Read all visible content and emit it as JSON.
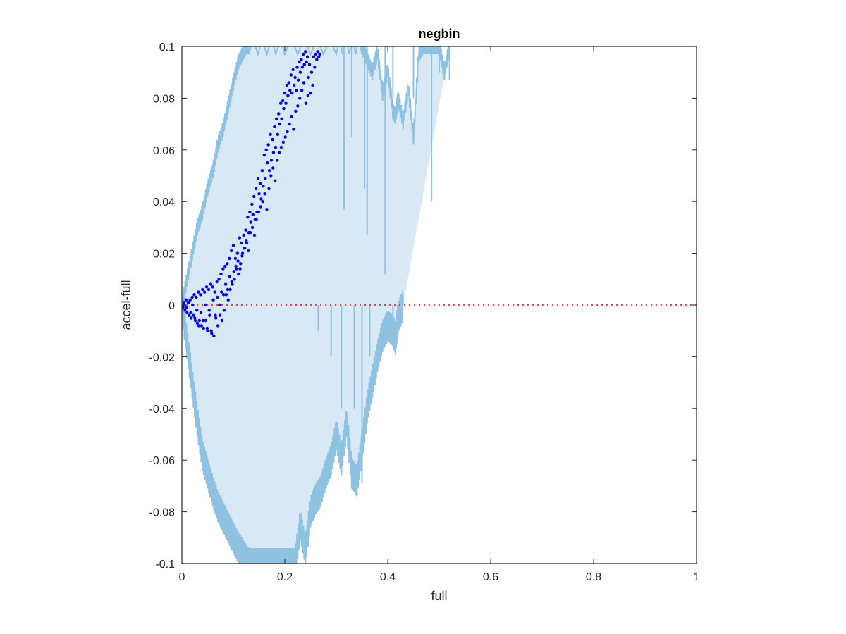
{
  "chart_data": {
    "type": "scatter",
    "title": "negbin",
    "xlabel": "full",
    "ylabel": "accel-full",
    "xlim": [
      0,
      1
    ],
    "ylim": [
      -0.1,
      0.1
    ],
    "xticks": [
      0,
      0.2,
      0.4,
      0.6,
      0.8,
      1
    ],
    "xtick_labels": [
      "0",
      "0.2",
      "0.4",
      "0.6",
      "0.8",
      "1"
    ],
    "yticks": [
      -0.1,
      -0.08,
      -0.06,
      -0.04,
      -0.02,
      0,
      0.02,
      0.04,
      0.06,
      0.08,
      0.1
    ],
    "ytick_labels": [
      "-0.1",
      "-0.08",
      "-0.06",
      "-0.04",
      "-0.02",
      "0",
      "0.02",
      "0.04",
      "0.06",
      "0.08",
      "0.1"
    ],
    "grid": false,
    "reference_line": {
      "y": 0,
      "color": "#ff0000",
      "style": "dotted"
    },
    "band_color": "#8fc1e0",
    "band_fill_color": "#d9e8f5",
    "points_color": "#0000ee",
    "upper_envelope": {
      "x": [
        0,
        0.01,
        0.02,
        0.03,
        0.04,
        0.05,
        0.06,
        0.07,
        0.08,
        0.09,
        0.1,
        0.11,
        0.12,
        0.125,
        0.13,
        0.2,
        0.3,
        0.35,
        0.36,
        0.37,
        0.38,
        0.39,
        0.4,
        0.41,
        0.415,
        0.42,
        0.43,
        0.44,
        0.45,
        0.46,
        0.47,
        0.48,
        0.49,
        0.5,
        0.51,
        0.52
      ],
      "y": [
        0,
        0.01,
        0.02,
        0.03,
        0.036,
        0.045,
        0.052,
        0.062,
        0.068,
        0.077,
        0.086,
        0.094,
        0.098,
        0.1,
        0.1,
        0.1,
        0.1,
        0.1,
        0.095,
        0.09,
        0.098,
        0.082,
        0.091,
        0.075,
        0.073,
        0.08,
        0.071,
        0.084,
        0.065,
        0.097,
        0.1,
        0.1,
        0.1,
        0.1,
        0.09,
        0.1
      ]
    },
    "lower_envelope": {
      "x": [
        0,
        0.01,
        0.02,
        0.03,
        0.04,
        0.05,
        0.06,
        0.07,
        0.08,
        0.09,
        0.1,
        0.11,
        0.12,
        0.13,
        0.14,
        0.15,
        0.16,
        0.17,
        0.18,
        0.19,
        0.2,
        0.21,
        0.22,
        0.23,
        0.24,
        0.25,
        0.26,
        0.27,
        0.28,
        0.29,
        0.3,
        0.31,
        0.32,
        0.33,
        0.34,
        0.35,
        0.36,
        0.37,
        0.38,
        0.39,
        0.4,
        0.41,
        0.415,
        0.42,
        0.43
      ],
      "y": [
        0,
        -0.015,
        -0.03,
        -0.045,
        -0.058,
        -0.065,
        -0.072,
        -0.078,
        -0.082,
        -0.086,
        -0.09,
        -0.094,
        -0.097,
        -0.1,
        -0.1,
        -0.1,
        -0.1,
        -0.1,
        -0.1,
        -0.1,
        -0.1,
        -0.1,
        -0.1,
        -0.085,
        -0.095,
        -0.08,
        -0.075,
        -0.072,
        -0.065,
        -0.06,
        -0.05,
        -0.06,
        -0.045,
        -0.065,
        -0.068,
        -0.055,
        -0.04,
        -0.03,
        -0.02,
        -0.012,
        -0.008,
        -0.01,
        -0.013,
        -0.005,
        0
      ]
    },
    "upper_spikes": [
      {
        "x": 0.33,
        "y": 0.065
      },
      {
        "x": 0.315,
        "y": 0.037
      },
      {
        "x": 0.355,
        "y": 0.045
      },
      {
        "x": 0.36,
        "y": 0.027
      },
      {
        "x": 0.395,
        "y": 0.012
      },
      {
        "x": 0.41,
        "y": 0.08
      },
      {
        "x": 0.45,
        "y": 0.08
      },
      {
        "x": 0.485,
        "y": 0.04
      },
      {
        "x": 0.5,
        "y": 0.09
      },
      {
        "x": 0.52,
        "y": 0.087
      }
    ],
    "lower_spikes": [
      {
        "x": 0.265,
        "y": -0.01
      },
      {
        "x": 0.29,
        "y": -0.02
      },
      {
        "x": 0.31,
        "y": -0.04
      },
      {
        "x": 0.335,
        "y": -0.04
      },
      {
        "x": 0.35,
        "y": -0.069
      },
      {
        "x": 0.365,
        "y": -0.02
      },
      {
        "x": 0.41,
        "y": -0.013
      },
      {
        "x": 0.42,
        "y": -0.005
      }
    ],
    "series": [
      {
        "type": "scatter",
        "x": [
          0.002,
          0.004,
          0.006,
          0.008,
          0.01,
          0.012,
          0.014,
          0.016,
          0.018,
          0.02,
          0.022,
          0.024,
          0.026,
          0.028,
          0.03,
          0.032,
          0.034,
          0.036,
          0.038,
          0.04,
          0.042,
          0.044,
          0.046,
          0.048,
          0.05,
          0.052,
          0.054,
          0.056,
          0.058,
          0.06,
          0.062,
          0.064,
          0.066,
          0.068,
          0.07,
          0.072,
          0.074,
          0.076,
          0.078,
          0.08,
          0.082,
          0.084,
          0.086,
          0.088,
          0.09,
          0.092,
          0.094,
          0.096,
          0.098,
          0.1,
          0.102,
          0.104,
          0.106,
          0.108,
          0.11,
          0.112,
          0.114,
          0.116,
          0.118,
          0.12,
          0.122,
          0.124,
          0.126,
          0.128,
          0.13,
          0.132,
          0.134,
          0.136,
          0.138,
          0.14,
          0.142,
          0.144,
          0.146,
          0.148,
          0.15,
          0.152,
          0.154,
          0.156,
          0.158,
          0.16,
          0.162,
          0.164,
          0.166,
          0.168,
          0.17,
          0.172,
          0.174,
          0.176,
          0.178,
          0.18,
          0.182,
          0.184,
          0.186,
          0.188,
          0.19,
          0.192,
          0.194,
          0.196,
          0.198,
          0.2,
          0.202,
          0.204,
          0.206,
          0.208,
          0.21,
          0.212,
          0.214,
          0.216,
          0.218,
          0.22,
          0.222,
          0.224,
          0.226,
          0.228,
          0.23,
          0.232,
          0.234,
          0.236,
          0.238,
          0.24,
          0.242,
          0.244,
          0.246,
          0.248,
          0.25,
          0.252,
          0.254,
          0.256,
          0.258,
          0.26,
          0.262,
          0.264,
          0.266,
          0.268,
          0.005,
          0.009,
          0.013,
          0.017,
          0.021,
          0.025,
          0.029,
          0.033,
          0.037,
          0.041,
          0.045,
          0.049,
          0.053,
          0.057,
          0.061,
          0.065,
          0.069,
          0.073,
          0.077,
          0.081,
          0.085,
          0.089,
          0.093,
          0.097,
          0.101,
          0.105,
          0.109,
          0.113,
          0.117,
          0.121,
          0.125,
          0.129,
          0.133,
          0.137,
          0.141,
          0.145,
          0.149,
          0.153,
          0.157,
          0.161,
          0.165,
          0.169,
          0.173,
          0.177,
          0.181,
          0.185,
          0.189,
          0.193,
          0.197,
          0.201,
          0.205,
          0.209,
          0.213,
          0.217,
          0.221,
          0.225,
          0.229,
          0.233,
          0.237,
          0.241,
          0.245
        ],
        "y": [
          -0.001,
          0.001,
          -0.002,
          0.002,
          -0.003,
          0.001,
          -0.004,
          0.002,
          -0.005,
          0.003,
          -0.004,
          0.004,
          -0.006,
          0.003,
          -0.007,
          0.005,
          -0.006,
          0.004,
          -0.008,
          0.006,
          -0.009,
          0.005,
          -0.006,
          0.007,
          -0.01,
          0.006,
          -0.004,
          0.008,
          -0.011,
          0.007,
          -0.012,
          0.005,
          -0.005,
          0.009,
          -0.008,
          0.01,
          -0.004,
          0.012,
          -0.006,
          0.014,
          -0.002,
          0.015,
          0.004,
          0.016,
          0.002,
          0.018,
          0.006,
          0.021,
          0.008,
          0.023,
          0.01,
          0.018,
          0.014,
          0.02,
          0.012,
          0.026,
          0.016,
          0.024,
          0.02,
          0.027,
          0.022,
          0.029,
          0.024,
          0.034,
          0.028,
          0.036,
          0.032,
          0.039,
          0.035,
          0.042,
          0.033,
          0.045,
          0.036,
          0.049,
          0.043,
          0.047,
          0.041,
          0.052,
          0.046,
          0.058,
          0.049,
          0.06,
          0.055,
          0.062,
          0.052,
          0.066,
          0.056,
          0.064,
          0.059,
          0.069,
          0.061,
          0.072,
          0.066,
          0.074,
          0.07,
          0.078,
          0.072,
          0.079,
          0.076,
          0.082,
          0.078,
          0.085,
          0.081,
          0.086,
          0.083,
          0.089,
          0.082,
          0.091,
          0.085,
          0.088,
          0.083,
          0.092,
          0.087,
          0.094,
          0.09,
          0.095,
          0.092,
          0.097,
          0.093,
          0.098,
          0.094,
          0.096,
          0.088,
          0.093,
          0.082,
          0.09,
          0.085,
          0.096,
          0.092,
          0.097,
          0.095,
          0.098,
          0.096,
          0.097,
          0.0,
          -0.001,
          0.001,
          -0.003,
          0.0,
          -0.005,
          -0.002,
          -0.008,
          -0.003,
          -0.006,
          0.0,
          -0.009,
          -0.002,
          -0.01,
          0.002,
          -0.004,
          0.003,
          0.0,
          0.005,
          0.004,
          0.008,
          0.006,
          0.011,
          0.009,
          0.013,
          0.015,
          0.017,
          0.014,
          0.019,
          0.022,
          0.025,
          0.021,
          0.028,
          0.03,
          0.027,
          0.033,
          0.036,
          0.038,
          0.04,
          0.043,
          0.037,
          0.045,
          0.05,
          0.053,
          0.048,
          0.056,
          0.059,
          0.061,
          0.063,
          0.065,
          0.067,
          0.07,
          0.073,
          0.068,
          0.075,
          0.077,
          0.08,
          0.083,
          0.086,
          0.078,
          0.081
        ]
      }
    ]
  }
}
